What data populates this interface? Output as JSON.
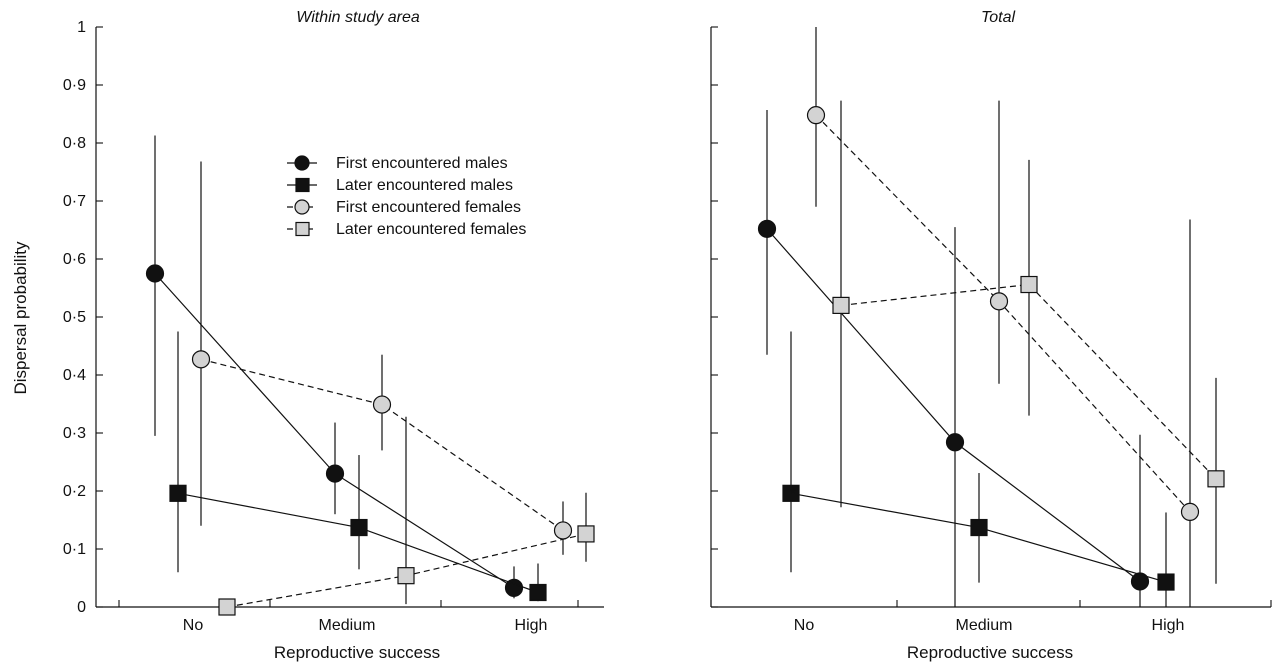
{
  "chart_data": [
    {
      "type": "scatter",
      "title": "Within study area",
      "xlabel": "Reproductive success",
      "ylabel": "Dispersal probability",
      "categories": [
        "No",
        "Medium",
        "High"
      ],
      "ylim": [
        0,
        1
      ],
      "yticks": [
        "0",
        "0·1",
        "0·2",
        "0·3",
        "0·4",
        "0·5",
        "0·6",
        "0·7",
        "0·8",
        "0·9",
        "1"
      ],
      "legend": "upper-center",
      "series": [
        {
          "name": "First encountered males",
          "marker": "circle",
          "fill": "#111111",
          "line": "solid",
          "values": [
            0.575,
            0.23,
            0.033
          ],
          "lower": [
            0.295,
            0.16,
            0.015
          ],
          "upper": [
            0.813,
            0.318,
            0.07
          ]
        },
        {
          "name": "Later encountered males",
          "marker": "square",
          "fill": "#111111",
          "line": "solid",
          "values": [
            0.196,
            0.137,
            0.025
          ],
          "lower": [
            0.06,
            0.065,
            0.01
          ],
          "upper": [
            0.475,
            0.262,
            0.075
          ]
        },
        {
          "name": "First encountered females",
          "marker": "circle",
          "fill": "#d3d3d3",
          "line": "dashed",
          "values": [
            0.427,
            0.349,
            0.132
          ],
          "lower": [
            0.14,
            0.27,
            0.09
          ],
          "upper": [
            0.768,
            0.435,
            0.182
          ]
        },
        {
          "name": "Later encountered females",
          "marker": "square",
          "fill": "#d3d3d3",
          "line": "dashed",
          "values": [
            0.0,
            0.054,
            0.126
          ],
          "lower": [
            0.0,
            0.005,
            0.078
          ],
          "upper": [
            0.0,
            0.328,
            0.197
          ]
        }
      ]
    },
    {
      "type": "scatter",
      "title": "Total",
      "xlabel": "Reproductive success",
      "ylabel": "",
      "categories": [
        "No",
        "Medium",
        "High"
      ],
      "ylim": [
        0,
        1
      ],
      "annotation": "*",
      "series": [
        {
          "name": "First encountered males",
          "marker": "circle",
          "fill": "#111111",
          "line": "solid",
          "values": [
            0.652,
            0.284,
            0.044
          ],
          "lower": [
            0.435,
            0.0,
            0.0
          ],
          "upper": [
            0.857,
            0.655,
            0.297
          ]
        },
        {
          "name": "Later encountered males",
          "marker": "square",
          "fill": "#111111",
          "line": "solid",
          "values": [
            0.196,
            0.137,
            0.043
          ],
          "lower": [
            0.06,
            0.042,
            0.0
          ],
          "upper": [
            0.475,
            0.231,
            0.163
          ]
        },
        {
          "name": "First encountered females",
          "marker": "circle",
          "fill": "#d3d3d3",
          "line": "dashed",
          "values": [
            0.848,
            0.527,
            0.164
          ],
          "lower": [
            0.69,
            0.385,
            0.0
          ],
          "upper": [
            1.0,
            0.873,
            0.668
          ]
        },
        {
          "name": "Later encountered females",
          "marker": "square",
          "fill": "#d3d3d3",
          "line": "dashed",
          "values": [
            0.52,
            0.556,
            0.221
          ],
          "lower": [
            0.172,
            0.33,
            0.04
          ],
          "upper": [
            0.873,
            0.771,
            0.395
          ]
        }
      ]
    }
  ]
}
